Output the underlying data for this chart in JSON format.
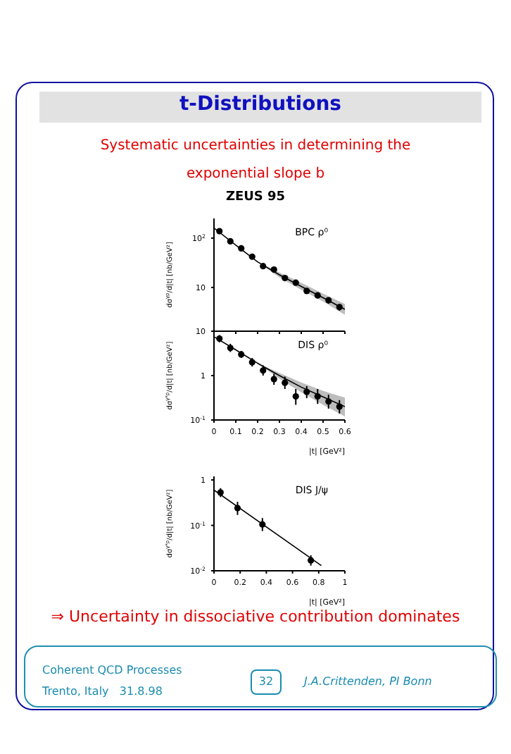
{
  "chart_data": [
    {
      "type": "scatter",
      "title": "t-Distributions",
      "subtitle": "Systematic uncertainties in determining the exponential slope b",
      "annotations": [
        "BPC ρ⁰",
        "ZEUS 95"
      ],
      "ylabel": "dσ$^{γp}$/d|t| [nb/GeV²]",
      "log": "y",
      "xlim": [
        0,
        0.6
      ],
      "xticks": [
        0,
        0.1,
        0.2,
        0.3,
        0.4,
        0.5,
        0.6
      ],
      "ylim": [
        1.3,
        250
      ],
      "yticks": [
        {
          "value": 10,
          "label": "10"
        },
        {
          "value": 100,
          "label": "10$^{2}$"
        }
      ],
      "tick_labels": "y",
      "series": [
        {
          "type": "scatter",
          "marker": "circle",
          "color": "#000000",
          "x": [
            0.025,
            0.075,
            0.125,
            0.175,
            0.225,
            0.275,
            0.325,
            0.375,
            0.425,
            0.475,
            0.525,
            0.575
          ],
          "values": [
            138,
            86,
            62,
            42,
            27,
            23,
            15.5,
            12.5,
            8.5,
            6.9,
            5.5,
            4.0
          ],
          "errors": [
            [
              125,
              152
            ],
            [
              78,
              95
            ],
            [
              56,
              68
            ],
            [
              38,
              46
            ],
            [
              24,
              30
            ],
            [
              20.5,
              25.5
            ],
            [
              13.8,
              17.2
            ],
            [
              11,
              14
            ],
            [
              7.5,
              9.6
            ],
            [
              6,
              7.8
            ],
            [
              4.7,
              6.3
            ],
            [
              3.4,
              4.6
            ]
          ]
        },
        {
          "type": "line",
          "color": "#000000",
          "x": [
            0,
            0.1,
            0.2,
            0.3,
            0.4,
            0.5,
            0.6
          ],
          "values": [
            160,
            72,
            33,
            18,
            10.5,
            6.2,
            3.6
          ],
          "lower": [
            160,
            72,
            33,
            16,
            9,
            5.2,
            2.8
          ],
          "upper": [
            160,
            72,
            33,
            20,
            12.5,
            7.5,
            4.6
          ]
        }
      ]
    },
    {
      "type": "scatter",
      "annotations": [
        "DIS ρ⁰"
      ],
      "ylabel": "dσ$^{γ*p}$/d|t| [nb/GeV²]",
      "xlabel": "|t| [GeV²]",
      "log": "y",
      "xlim": [
        0,
        0.6
      ],
      "xticks": [
        0,
        0.1,
        0.2,
        0.3,
        0.4,
        0.5,
        0.6
      ],
      "ylim": [
        0.1,
        10
      ],
      "yticks": [
        {
          "value": 0.1,
          "label": "10$^{-1}$"
        },
        {
          "value": 1,
          "label": "1"
        },
        {
          "value": 10,
          "label": "10"
        }
      ],
      "series": [
        {
          "type": "scatter",
          "marker": "circle",
          "color": "#000000",
          "x": [
            0.025,
            0.075,
            0.125,
            0.175,
            0.225,
            0.275,
            0.325,
            0.375,
            0.425,
            0.475,
            0.525,
            0.575
          ],
          "values": [
            6.8,
            4.2,
            3.0,
            2.0,
            1.3,
            0.83,
            0.69,
            0.34,
            0.43,
            0.34,
            0.26,
            0.2
          ],
          "errors": [
            [
              5.6,
              8.2
            ],
            [
              3.4,
              5.2
            ],
            [
              2.5,
              3.6
            ],
            [
              1.6,
              2.5
            ],
            [
              1.0,
              1.7
            ],
            [
              0.62,
              1.1
            ],
            [
              0.5,
              0.95
            ],
            [
              0.22,
              0.5
            ],
            [
              0.31,
              0.58
            ],
            [
              0.23,
              0.5
            ],
            [
              0.18,
              0.37
            ],
            [
              0.14,
              0.28
            ]
          ]
        },
        {
          "type": "line",
          "color": "#000000",
          "x": [
            0,
            0.1,
            0.2,
            0.3,
            0.4,
            0.5,
            0.6
          ],
          "values": [
            7.5,
            3.8,
            1.9,
            1.0,
            0.55,
            0.33,
            0.2
          ],
          "lower": [
            7.5,
            3.8,
            1.9,
            0.85,
            0.42,
            0.22,
            0.12
          ],
          "upper": [
            7.5,
            3.8,
            1.9,
            1.15,
            0.7,
            0.45,
            0.32
          ]
        }
      ]
    },
    {
      "type": "scatter",
      "annotations": [
        "DIS J/ψ",
        "⇒ Uncertainty in dissociative contribution dominates",
        "Coherent QCD Processes",
        "Trento, Italy   31.8.98",
        "32",
        "J.A.Crittenden, PI Bonn"
      ],
      "ylabel": "dσ$^{γ*p}$/d|t| [nb/GeV²]",
      "xlabel": "|t| [GeV²]",
      "log": "y",
      "xlim": [
        0,
        1
      ],
      "xticks": [
        0,
        0.2,
        0.4,
        0.6,
        0.8,
        1
      ],
      "ylim": [
        0.01,
        1.2
      ],
      "yticks": [
        {
          "value": 0.01,
          "label": "10$^{-2}$"
        },
        {
          "value": 0.1,
          "label": "10$^{-1}$"
        },
        {
          "value": 1,
          "label": "1"
        }
      ],
      "series": [
        {
          "type": "scatter",
          "marker": "circle",
          "color": "#000000",
          "x": [
            0.05,
            0.18,
            0.37,
            0.74
          ],
          "values": [
            0.53,
            0.24,
            0.105,
            0.017
          ],
          "errors": [
            [
              0.42,
              0.66
            ],
            [
              0.17,
              0.33
            ],
            [
              0.075,
              0.145
            ],
            [
              0.013,
              0.022
            ]
          ]
        },
        {
          "type": "line",
          "color": "#000000",
          "x": [
            0,
            0.82
          ],
          "values": [
            0.6,
            0.013
          ]
        }
      ]
    }
  ]
}
